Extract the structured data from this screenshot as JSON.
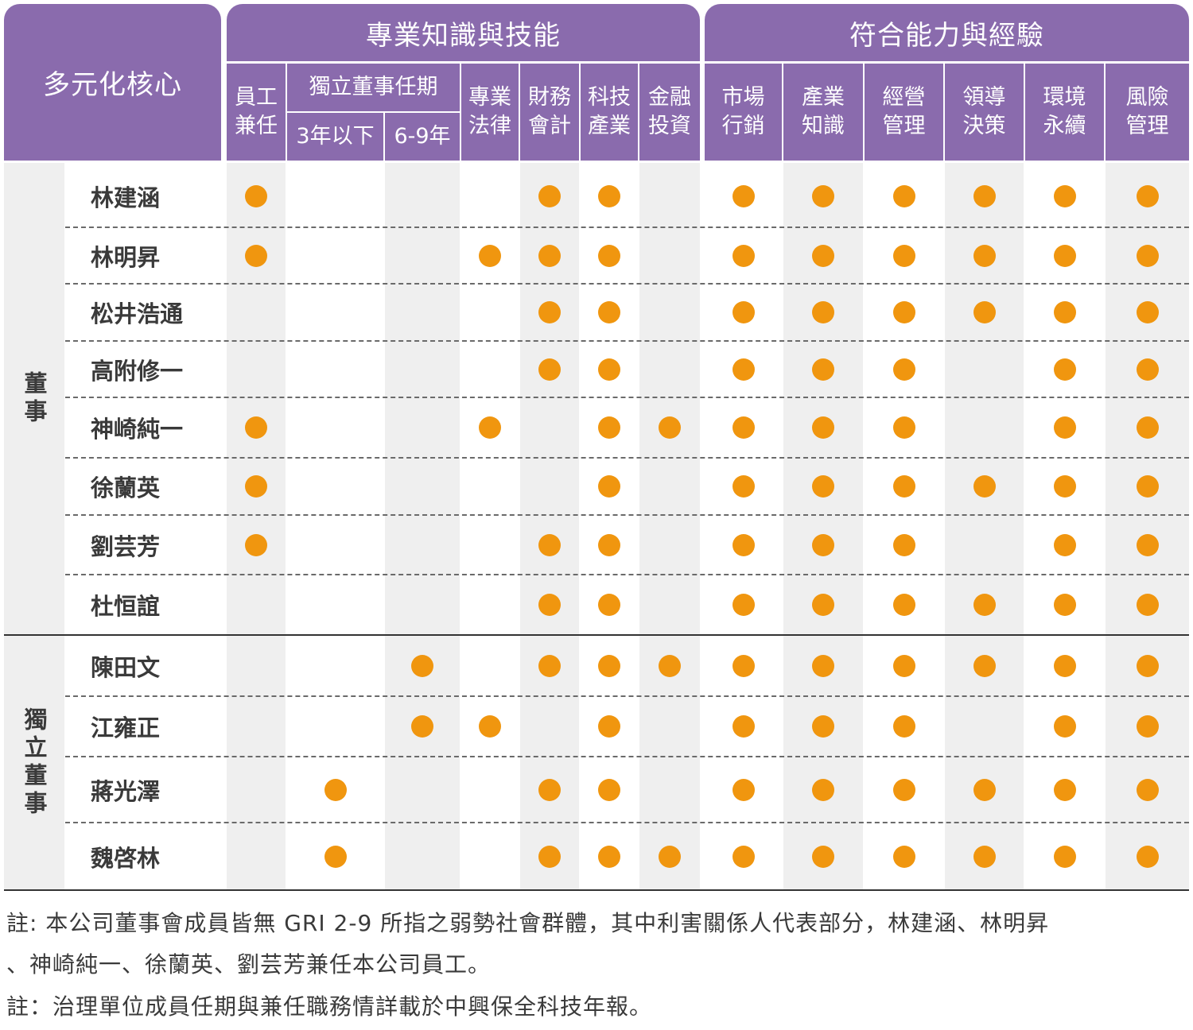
{
  "header": {
    "corner": "多元化核心",
    "group_professional": "專業知識與技能",
    "group_ability": "符合能力與經驗",
    "tenure_group": "獨立董事任期",
    "columns": [
      "員工\n兼任",
      "3年以下",
      "6-9年",
      "專業\n法律",
      "財務\n會計",
      "科技\n產業",
      "金融\n投資",
      "市場\n行銷",
      "產業\n知識",
      "經營\n管理",
      "領導\n決策",
      "環境\n永續",
      "風險\n管理"
    ]
  },
  "groups": {
    "directors": "董事",
    "independent": "獨立董事"
  },
  "rows": [
    {
      "name": "林建涵",
      "marks": [
        1,
        0,
        0,
        0,
        1,
        1,
        0,
        1,
        1,
        1,
        1,
        1,
        1
      ]
    },
    {
      "name": "林明昇",
      "marks": [
        1,
        0,
        0,
        1,
        1,
        1,
        0,
        1,
        1,
        1,
        1,
        1,
        1
      ]
    },
    {
      "name": "松井浩通",
      "marks": [
        0,
        0,
        0,
        0,
        1,
        1,
        0,
        1,
        1,
        1,
        1,
        1,
        1
      ]
    },
    {
      "name": "高附修一",
      "marks": [
        0,
        0,
        0,
        0,
        1,
        1,
        0,
        1,
        1,
        1,
        0,
        1,
        1
      ]
    },
    {
      "name": "神崎純一",
      "marks": [
        1,
        0,
        0,
        1,
        0,
        1,
        1,
        1,
        1,
        1,
        0,
        1,
        1
      ]
    },
    {
      "name": "徐蘭英",
      "marks": [
        1,
        0,
        0,
        0,
        0,
        1,
        0,
        1,
        1,
        1,
        1,
        1,
        1
      ]
    },
    {
      "name": "劉芸芳",
      "marks": [
        1,
        0,
        0,
        0,
        1,
        1,
        0,
        1,
        1,
        1,
        0,
        1,
        1
      ]
    },
    {
      "name": "杜恒誼",
      "marks": [
        0,
        0,
        0,
        0,
        1,
        1,
        0,
        1,
        1,
        1,
        1,
        1,
        1
      ]
    },
    {
      "name": "陳田文",
      "marks": [
        0,
        0,
        1,
        0,
        1,
        1,
        1,
        1,
        1,
        1,
        1,
        1,
        1
      ]
    },
    {
      "name": "江雍正",
      "marks": [
        0,
        0,
        1,
        1,
        0,
        1,
        0,
        1,
        1,
        1,
        0,
        1,
        1
      ]
    },
    {
      "name": "蔣光澤",
      "marks": [
        0,
        1,
        0,
        0,
        1,
        1,
        0,
        1,
        1,
        1,
        1,
        1,
        1
      ]
    },
    {
      "name": "魏啓林",
      "marks": [
        0,
        1,
        0,
        0,
        1,
        1,
        1,
        1,
        1,
        1,
        1,
        1,
        1
      ]
    }
  ],
  "notes": {
    "line1": "註: 本公司董事會成員皆無 GRI 2-9 所指之弱勢社會群體，其中利害關係人代表部分，林建涵、林明昇",
    "line2": "、神崎純一、徐蘭英、劉芸芳兼任本公司員工。",
    "line3": "註：治理單位成員任期與兼任職務情詳載於中興保全科技年報。"
  },
  "colors": {
    "header_purple": "#8a6bad",
    "dot_orange": "#f0960f",
    "shade_gray": "#efefef"
  }
}
